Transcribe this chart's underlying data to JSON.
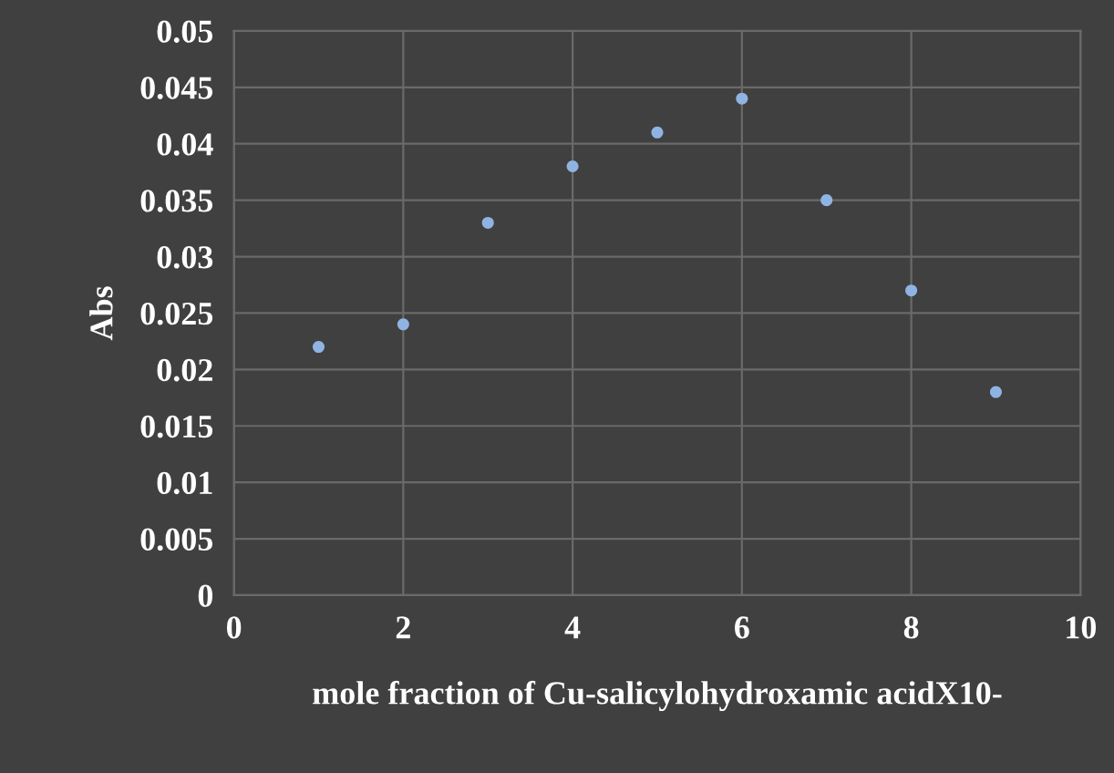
{
  "chart_data": {
    "type": "scatter",
    "xlabel": "mole fraction of Cu-salicylohydroxamic acidX10-",
    "ylabel": "Abs",
    "x": [
      1,
      2,
      3,
      4,
      5,
      6,
      7,
      8,
      9
    ],
    "series": [
      {
        "color": "#8fb4e3",
        "values": [
          0.022,
          0.024,
          0.033,
          0.038,
          0.041,
          0.044,
          0.035,
          0.027,
          0.018
        ]
      }
    ],
    "xlim": [
      0,
      10
    ],
    "xticks": [
      0,
      2,
      4,
      6,
      8,
      10
    ],
    "ylim": [
      0,
      0.05
    ],
    "yticks": [
      0,
      0.005,
      0.01,
      0.015,
      0.02,
      0.025,
      0.03,
      0.035,
      0.04,
      0.045,
      0.05
    ],
    "grid": true,
    "marker": "circle"
  }
}
